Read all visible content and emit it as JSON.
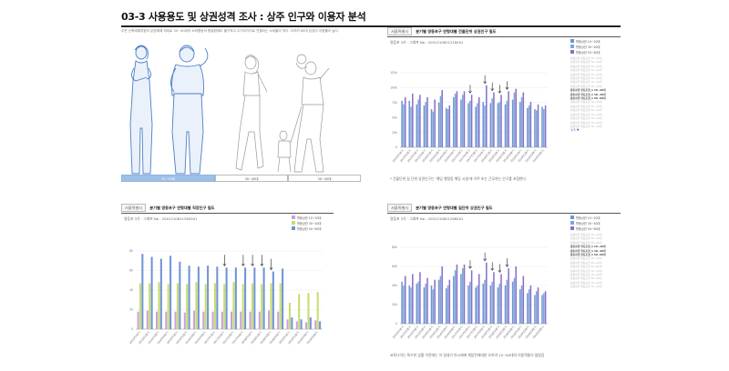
{
  "page": {
    "title": "03-3 사용용도 및 상권성격 조사 : 상주 인구와 이용자 분석",
    "intro": "주변 신축예예류점의 분양예예 세대로 30~40대의 소비활동의 활발함에도 불구하고 주거이거리로 연결되는 소비불이 적다. 오히려 60대 남성이 이용률이 높다.",
    "segments": [
      {
        "label": "30~40대",
        "active": true
      },
      {
        "label": "30~40대",
        "active": false
      },
      {
        "label": "30~40대",
        "active": false
      }
    ]
  },
  "panels": [
    {
      "tag": "서울특별시",
      "title": "분기별 영등포구 연령대별 건물단위 상권인구 밀도",
      "meta": "영등포 3가 · 그래프 No : 2001210821216001",
      "note": "* 건물단위 길 단위 상권인구는 '해당 행정동 해당 시설'에 거주 또는 근무하는 인구를 포함한다.",
      "pager": "1/3 ▼",
      "legend": [
        {
          "label": "활동상권 10~20대",
          "color": "#6f94d4"
        },
        {
          "label": "활동상권 30~40대",
          "color": "#7aa8d8"
        },
        {
          "label": "활동상권 50~60대",
          "color": "#8870c8"
        }
      ],
      "legend_extra": [
        {
          "text": "활동상권 영등포권 10~20대",
          "dark": false
        },
        {
          "text": "활동상권 영등포권 30~40대",
          "dark": false
        },
        {
          "text": "활동상권 영등포권 50~60대",
          "dark": false
        },
        {
          "text": "활동상권 영등포권 10~20대",
          "dark": false
        },
        {
          "text": "활동상권 영등포권 30~40대",
          "dark": false
        },
        {
          "text": "활동상권 영등포권 50~60대",
          "dark": false
        },
        {
          "text": "활동상권 영등포권 10~20대",
          "dark": false
        },
        {
          "text": "활동상권 영등포권 30~40대",
          "dark": false
        },
        {
          "text": "활동상권 영등포권_1 10~20대",
          "dark": true
        },
        {
          "text": "활동상권 영등포권_1 30~40대",
          "dark": true
        },
        {
          "text": "활동상권 영등포권_1 50~60대",
          "dark": true
        },
        {
          "text": "활동상권 영등포권 10~20대",
          "dark": false
        },
        {
          "text": "활동상권 영등포권 30~40대",
          "dark": false
        },
        {
          "text": "활동상권 영등포권 50~60대",
          "dark": false
        },
        {
          "text": "활동상권 영등포권 10~20대",
          "dark": false
        },
        {
          "text": "활동상권 영등포권 30~40대",
          "dark": false
        },
        {
          "text": "활동상권 영등포권 50~60대",
          "dark": false
        },
        {
          "text": "활동상권 영등포권 10~20대",
          "dark": false
        }
      ]
    },
    {
      "tag": "서울특별시",
      "title": "분기별 영등포구 연령대별 직장인구 밀도",
      "meta": "영등포 3가 · 그래프 No : 2001210821365001",
      "legend": [
        {
          "label": "활동상권 10~20대",
          "color": "#c9a0dc"
        },
        {
          "label": "활동상권 30~40대",
          "color": "#c7dc6c"
        },
        {
          "label": "활동상권 50~60대",
          "color": "#6f94d4"
        }
      ]
    },
    {
      "tag": "서울특별시",
      "title": "분기별 영등포구 연령대별 길단위 상권인구 밀도",
      "meta": "영등포 3가 · 그래프 No : 2001210821266001",
      "note": "코로나이는 특수한 상황 이전에는 이 일대가 아시에에 계있전에대한 오히려 10~60대의 이용객들이 많았음",
      "legend": [
        {
          "label": "활동상권 10~20대",
          "color": "#6f94d4"
        },
        {
          "label": "활동상권 30~40대",
          "color": "#7aa8d8"
        },
        {
          "label": "활동상권 50~60대",
          "color": "#8870c8"
        }
      ],
      "legend_extra": [
        {
          "text": "활동상권 영등포권 10~20대",
          "dark": false
        },
        {
          "text": "활동상권 영등포권 30~40대",
          "dark": false
        },
        {
          "text": "활동상권 영등포권 50~60대",
          "dark": false
        },
        {
          "text": "활동상권 영등포권_1 10~20대",
          "dark": true
        },
        {
          "text": "활동상권 영등포권_1 30~40대",
          "dark": true
        },
        {
          "text": "활동상권 영등포권_1 50~60대",
          "dark": true
        },
        {
          "text": "활동상권 영등포권 10~20대",
          "dark": false
        },
        {
          "text": "활동상권 영등포권 30~40대",
          "dark": false
        },
        {
          "text": "활동상권 영등포권 50~60대",
          "dark": false
        },
        {
          "text": "활동상권 영등포권 10~20대",
          "dark": false
        },
        {
          "text": "활동상권 영등포권 30~40대",
          "dark": false
        },
        {
          "text": "활동상권 영등포권 50~60대",
          "dark": false
        },
        {
          "text": "활동상권 영등포권 10~20대",
          "dark": false
        },
        {
          "text": "활동상권 영등포권 30~40대",
          "dark": false
        }
      ]
    }
  ],
  "chart_data": [
    {
      "type": "bar",
      "ylim": [
        0,
        125
      ],
      "yticks": [
        "0",
        "25k",
        "50k",
        "75k",
        "100k",
        "125k"
      ],
      "categories": [
        "2015년1분기",
        "2015년2분기",
        "2015년3분기",
        "2015년4분기",
        "2016년1분기",
        "2016년2분기",
        "2016년3분기",
        "2016년4분기",
        "2017년1분기",
        "2017년2분기",
        "2017년3분기",
        "2017년4분기",
        "2018년1분기",
        "2018년2분기",
        "2018년3분기",
        "2018년4분기",
        "2019년1분기",
        "2019년2분기",
        "2019년3분기",
        "2019년4분기"
      ],
      "series": [
        {
          "values": [
            78,
            78,
            72,
            70,
            64,
            75,
            66,
            84,
            80,
            74,
            68,
            76,
            74,
            74,
            72,
            80,
            76,
            66,
            64,
            68
          ],
          "color": "#6f94d4"
        },
        {
          "values": [
            72,
            68,
            80,
            76,
            60,
            86,
            64,
            90,
            88,
            78,
            74,
            70,
            82,
            76,
            78,
            92,
            84,
            70,
            62,
            64
          ],
          "color": "#7aa8d8"
        },
        {
          "values": [
            84,
            90,
            88,
            84,
            80,
            96,
            70,
            94,
            94,
            88,
            84,
            104,
            92,
            88,
            94,
            98,
            92,
            76,
            72,
            70
          ],
          "color": "#8870c8"
        }
      ],
      "arrows": [
        9,
        11,
        12,
        13,
        14
      ]
    },
    {
      "type": "bar",
      "ylim": [
        0,
        80
      ],
      "yticks": [
        "0",
        "20",
        "40",
        "60",
        "80"
      ],
      "categories": [
        "2015년1분기",
        "2015년2분기",
        "2015년3분기",
        "2015년4분기",
        "2016년1분기",
        "2016년2분기",
        "2016년3분기",
        "2016년4분기",
        "2017년1분기",
        "2017년2분기",
        "2017년3분기",
        "2017년4분기",
        "2018년1분기",
        "2018년2분기",
        "2018년3분기",
        "2018년4분기",
        "2019년1분기",
        "2019년2분기",
        "2019년3분기",
        "2019년4분기"
      ],
      "series": [
        {
          "values": [
            18,
            19,
            18,
            18,
            18,
            17,
            19,
            18,
            18,
            18,
            18,
            18,
            18,
            18,
            19,
            18,
            10,
            8,
            7,
            9
          ],
          "color": "#c9a0dc"
        },
        {
          "values": [
            47,
            47,
            48,
            46,
            47,
            46,
            48,
            46,
            47,
            46,
            48,
            46,
            47,
            46,
            47,
            47,
            27,
            36,
            37,
            38
          ],
          "color": "#c7dc6c"
        },
        {
          "values": [
            77,
            74,
            72,
            75,
            69,
            65,
            64,
            65,
            64,
            63,
            63,
            63,
            63,
            63,
            59,
            62,
            12,
            10,
            12,
            8
          ],
          "color": "#6f94d4"
        }
      ],
      "arrows": [
        9,
        11,
        12,
        13,
        14
      ]
    },
    {
      "type": "bar",
      "ylim": [
        0,
        80
      ],
      "yticks": [
        "0",
        "20k",
        "40k",
        "60k",
        "80k"
      ],
      "categories": [
        "2015년1분기",
        "2015년2분기",
        "2015년3분기",
        "2015년4분기",
        "2016년1분기",
        "2016년2분기",
        "2016년3분기",
        "2016년4분기",
        "2017년1분기",
        "2017년2분기",
        "2017년3분기",
        "2017년4분기",
        "2018년1분기",
        "2018년2분기",
        "2018년3분기",
        "2018년4분기",
        "2019년1분기",
        "2019년2분기",
        "2019년3분기",
        "2019년4분기"
      ],
      "series": [
        {
          "values": [
            44,
            40,
            42,
            38,
            40,
            46,
            37,
            50,
            52,
            40,
            38,
            42,
            40,
            38,
            40,
            44,
            36,
            32,
            30,
            30
          ],
          "color": "#6f94d4"
        },
        {
          "values": [
            40,
            38,
            44,
            42,
            36,
            50,
            40,
            56,
            58,
            44,
            40,
            46,
            44,
            42,
            46,
            48,
            40,
            36,
            34,
            32
          ],
          "color": "#7aa8d8"
        },
        {
          "values": [
            50,
            52,
            54,
            48,
            46,
            60,
            46,
            62,
            62,
            56,
            52,
            64,
            54,
            52,
            58,
            60,
            50,
            40,
            38,
            34
          ],
          "color": "#8870c8"
        }
      ],
      "arrows": [
        9,
        11,
        12,
        13,
        14
      ]
    }
  ]
}
